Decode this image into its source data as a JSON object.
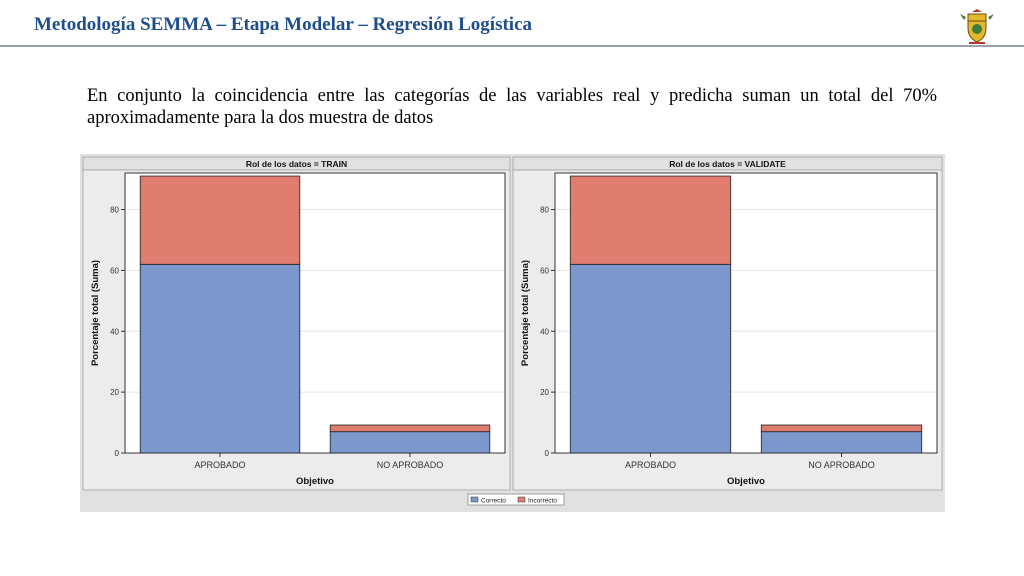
{
  "slide": {
    "title": "Metodología SEMMA – Etapa Modelar – Regresión Logística",
    "body_text": "En conjunto la coincidencia entre las categorías de las variables real y predicha suman un total del 70% aproximadamente para la dos muestra de datos"
  },
  "logo": {
    "icon": "university-crest-icon"
  },
  "chart_data": {
    "type": "bar",
    "stacked": true,
    "categories": [
      "APROBADO",
      "NO APROBADO"
    ],
    "xlabel": "Objetivo",
    "ylabel": "Porcentaje total (Suma)",
    "ylim": [
      0,
      92
    ],
    "yticks": [
      0,
      20,
      40,
      60,
      80
    ],
    "grid": true,
    "legend_position": "bottom",
    "colors": {
      "Correcto": "#7b97cc",
      "Incorrecto": "#de7d70"
    },
    "panels": [
      {
        "title": "Rol de los datos = TRAIN",
        "series": [
          {
            "name": "Correcto",
            "values": [
              62,
              7
            ]
          },
          {
            "name": "Incorrecto",
            "values": [
              29,
              2.2
            ]
          }
        ]
      },
      {
        "title": "Rol de los datos = VALIDATE",
        "series": [
          {
            "name": "Correcto",
            "values": [
              62,
              7
            ]
          },
          {
            "name": "Incorrecto",
            "values": [
              29,
              2.2
            ]
          }
        ]
      }
    ]
  }
}
